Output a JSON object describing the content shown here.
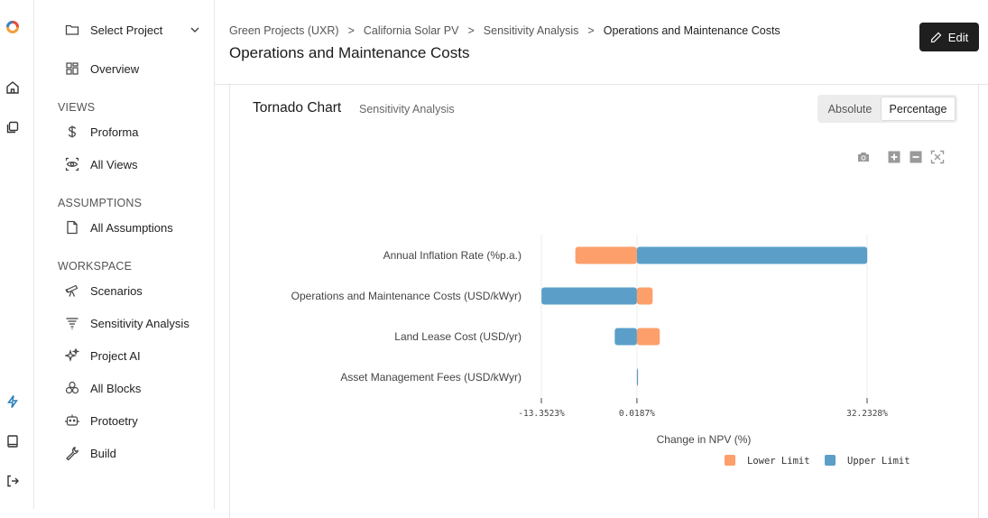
{
  "rail": {
    "icons": [
      "logo-icon",
      "home-icon",
      "projects-icon",
      "bolt-icon",
      "book-icon",
      "logout-icon"
    ]
  },
  "sidebar": {
    "project_select": "Select Project",
    "overview": "Overview",
    "sections": {
      "views": "VIEWS",
      "assumptions": "ASSUMPTIONS",
      "workspace": "WORKSPACE"
    },
    "views": [
      {
        "label": "Proforma"
      },
      {
        "label": "All Views"
      }
    ],
    "assumptions": [
      {
        "label": "All Assumptions"
      }
    ],
    "workspace": [
      {
        "label": "Scenarios"
      },
      {
        "label": "Sensitivity Analysis"
      },
      {
        "label": "Project AI"
      },
      {
        "label": "All Blocks"
      },
      {
        "label": "Protoetry"
      },
      {
        "label": "Build"
      }
    ]
  },
  "header": {
    "breadcrumbs": [
      "Green Projects (UXR)",
      "California Solar PV",
      "Sensitivity Analysis",
      "Operations and Maintenance Costs"
    ],
    "separator": ">",
    "title": "Operations and Maintenance Costs",
    "edit_label": "Edit"
  },
  "card": {
    "title": "Tornado Chart",
    "subtitle": "Sensitivity Analysis",
    "toggle": {
      "options": [
        "Absolute",
        "Percentage"
      ],
      "selected": "Percentage"
    }
  },
  "colors": {
    "lower": "#fd9f6a",
    "upper": "#5b9fc8",
    "accent": "#2a7fb8"
  },
  "chart_data": {
    "type": "bar",
    "orientation": "horizontal-tornado",
    "categories": [
      "Annual Inflation Rate (%p.a.)",
      "Operations and Maintenance Costs (USD/kWyr)",
      "Land Lease Cost (USD/yr)",
      "Asset Management Fees (USD/kWyr)"
    ],
    "base": 0.0187,
    "series": [
      {
        "name": "Lower Limit",
        "values": [
          -8.62,
          2.2,
          3.2,
          0.0
        ]
      },
      {
        "name": "Upper Limit",
        "values": [
          32.2328,
          -13.3523,
          -3.1,
          0.0
        ]
      }
    ],
    "tick_values": [
      -13.3523,
      0.0187,
      32.2328
    ],
    "tick_labels": [
      "-13.3523%",
      "0.0187%",
      "32.2328%"
    ],
    "xlabel": "Change in NPV (%)",
    "xlim": [
      -13.3523,
      32.2328
    ],
    "legend": [
      "Lower Limit",
      "Upper Limit"
    ],
    "legend_position": "bottom-right"
  }
}
